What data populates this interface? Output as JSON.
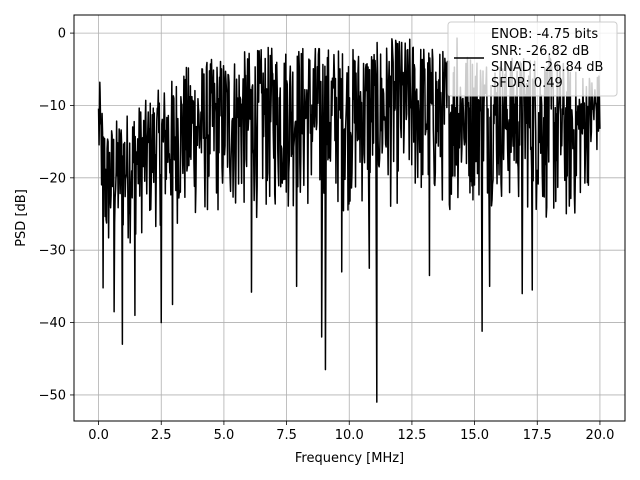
{
  "chart_data": {
    "type": "line",
    "title": "",
    "xlabel": "Frequency [MHz]",
    "ylabel": "PSD [dB]",
    "xlim": [
      -0.98,
      21.0
    ],
    "ylim": [
      -53.6,
      2.5
    ],
    "xticks": [
      0.0,
      2.5,
      5.0,
      7.5,
      10.0,
      12.5,
      15.0,
      17.5,
      20.0
    ],
    "xtick_labels": [
      "0.0",
      "2.5",
      "5.0",
      "7.5",
      "10.0",
      "12.5",
      "15.0",
      "17.5",
      "20.0"
    ],
    "yticks": [
      0,
      -10,
      -20,
      -30,
      -40,
      -50
    ],
    "ytick_labels": [
      "0",
      "−10",
      "−20",
      "−30",
      "−40",
      "−50"
    ],
    "grid": true,
    "legend_position": "top-right",
    "line_color": "#000000",
    "series": [
      {
        "name": "",
        "legend_lines": [
          "ENOB: -4.75 bits",
          "SNR: -26.82 dB",
          "SINAD: -26.84 dB",
          "SFDR: 0.49"
        ],
        "x_range": [
          0.0,
          20.0
        ],
        "points_approx": 1000,
        "upper_envelope": {
          "x": [
            0.0,
            0.3,
            1.0,
            2.0,
            2.5,
            3.5,
            5.0,
            6.5,
            7.5,
            8.75,
            10.0,
            11.5,
            12.5,
            13.5,
            15.0,
            16.0,
            17.5,
            18.5,
            19.0,
            20.0
          ],
          "y": [
            -6.8,
            -13.0,
            -11.0,
            -9.0,
            -7.5,
            -4.5,
            -3.0,
            -2.0,
            -1.5,
            -1.5,
            -2.0,
            -1.0,
            -0.5,
            -2.0,
            -2.5,
            -3.5,
            -2.5,
            -3.5,
            -5.0,
            -5.5
          ]
        },
        "lower_envelope": {
          "x": [
            0.0,
            0.3,
            1.0,
            2.0,
            2.5,
            3.5,
            5.0,
            6.5,
            7.5,
            8.75,
            10.0,
            11.5,
            12.5,
            13.5,
            15.0,
            16.0,
            17.5,
            18.5,
            19.0,
            20.0
          ],
          "y": [
            -21.0,
            -33.0,
            -30.0,
            -28.0,
            -27.0,
            -27.0,
            -26.0,
            -26.0,
            -25.0,
            -26.0,
            -25.0,
            -25.0,
            -24.0,
            -25.0,
            -24.0,
            -24.0,
            -26.0,
            -28.0,
            -27.0,
            -17.0
          ]
        },
        "dips": [
          {
            "x": 0.18,
            "y": -35.2
          },
          {
            "x": 0.62,
            "y": -38.5
          },
          {
            "x": 0.95,
            "y": -43.0
          },
          {
            "x": 1.45,
            "y": -39.0
          },
          {
            "x": 2.5,
            "y": -40.0
          },
          {
            "x": 2.95,
            "y": -37.5
          },
          {
            "x": 6.1,
            "y": -35.8
          },
          {
            "x": 7.9,
            "y": -35.0
          },
          {
            "x": 8.9,
            "y": -42.0
          },
          {
            "x": 9.05,
            "y": -46.5
          },
          {
            "x": 9.7,
            "y": -33.0
          },
          {
            "x": 10.8,
            "y": -32.5
          },
          {
            "x": 11.1,
            "y": -51.0
          },
          {
            "x": 13.2,
            "y": -33.5
          },
          {
            "x": 15.3,
            "y": -41.2
          },
          {
            "x": 15.6,
            "y": -35.0
          },
          {
            "x": 16.9,
            "y": -36.0
          },
          {
            "x": 17.3,
            "y": -35.5
          }
        ],
        "peaks": [
          {
            "x": 0.05,
            "y": -6.8
          },
          {
            "x": 11.7,
            "y": -0.8
          },
          {
            "x": 12.0,
            "y": -1.2
          },
          {
            "x": 14.3,
            "y": -0.7
          }
        ]
      }
    ]
  }
}
